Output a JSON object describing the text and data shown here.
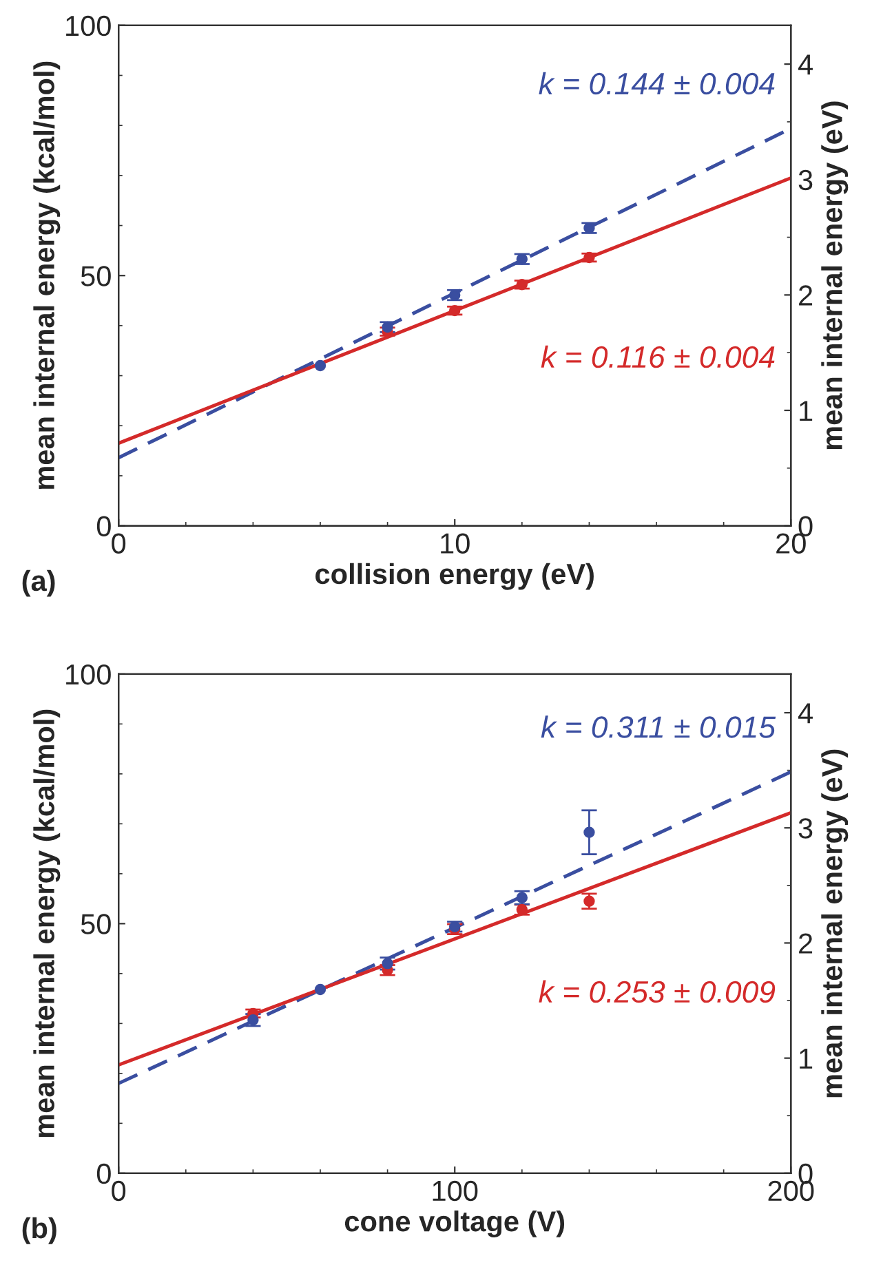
{
  "chart_data": [
    {
      "type": "scatter",
      "xlabel": "collision energy (eV)",
      "ylabel": "mean internal energy (kcal/mol)",
      "y2label": "mean internal energy (eV)",
      "xlim": [
        0,
        20
      ],
      "xticks": [
        0,
        10,
        20
      ],
      "ylim": [
        0,
        100
      ],
      "yticks": [
        0,
        50,
        100
      ],
      "y2lim": [
        0,
        4.336
      ],
      "y2ticks": [
        0,
        1,
        2,
        3,
        4
      ],
      "grid": false,
      "legend": false,
      "annotations": [
        "(a)"
      ],
      "series": [
        {
          "type": "line",
          "name": "k = 0.144 ± 0.004",
          "color": "#3a4ea0",
          "line_style": "dashed",
          "marker": "none",
          "x": [
            0,
            20
          ],
          "values": [
            13.6,
            79.4
          ]
        },
        {
          "type": "line",
          "name": "k = 0.116 ± 0.004",
          "color": "#d42a2a",
          "line_style": "solid",
          "marker": "none",
          "x": [
            0,
            20
          ],
          "values": [
            16.5,
            69.5
          ]
        },
        {
          "color": "#d42a2a",
          "marker": "circle",
          "x": [
            8,
            10,
            12,
            14
          ],
          "values": [
            38.8,
            43.0,
            48.2,
            53.6
          ],
          "errors": [
            0.8,
            0.8,
            0.8,
            0.8
          ]
        },
        {
          "color": "#3a4ea0",
          "marker": "circle",
          "x": [
            6,
            8,
            10,
            12,
            14
          ],
          "values": [
            32.0,
            39.7,
            46.1,
            53.3,
            59.5
          ],
          "errors": [
            null,
            1.0,
            1.0,
            1.0,
            1.0
          ]
        }
      ]
    },
    {
      "type": "scatter",
      "xlabel": "cone voltage (V)",
      "ylabel": "mean internal energy (kcal/mol)",
      "y2label": "mean internal energy (eV)",
      "xlim": [
        0,
        200
      ],
      "xticks": [
        0,
        100,
        200
      ],
      "ylim": [
        0,
        100
      ],
      "yticks": [
        0,
        50,
        100
      ],
      "y2lim": [
        0,
        4.336
      ],
      "y2ticks": [
        0,
        1,
        2,
        3,
        4
      ],
      "grid": false,
      "legend": false,
      "annotations": [
        "(b)"
      ],
      "series": [
        {
          "type": "line",
          "name": "k = 0.311 ± 0.015",
          "color": "#3a4ea0",
          "line_style": "dashed",
          "marker": "none",
          "x": [
            0,
            200
          ],
          "values": [
            18.0,
            80.4
          ]
        },
        {
          "type": "line",
          "name": "k = 0.253 ± 0.009",
          "color": "#d42a2a",
          "line_style": "solid",
          "marker": "none",
          "x": [
            0,
            200
          ],
          "values": [
            21.7,
            72.2
          ]
        },
        {
          "color": "#d42a2a",
          "marker": "circle",
          "x": [
            40,
            80,
            100,
            120,
            140
          ],
          "values": [
            32.0,
            40.7,
            48.9,
            52.8,
            54.5
          ],
          "errors": [
            0.8,
            1.0,
            1.0,
            1.0,
            1.5
          ]
        },
        {
          "color": "#3a4ea0",
          "marker": "circle",
          "x": [
            40,
            60,
            80,
            100,
            120,
            140
          ],
          "values": [
            30.7,
            36.8,
            42.0,
            49.4,
            55.2,
            68.3
          ],
          "errors": [
            1.2,
            null,
            1.2,
            1.0,
            1.3,
            4.4
          ]
        }
      ]
    }
  ]
}
